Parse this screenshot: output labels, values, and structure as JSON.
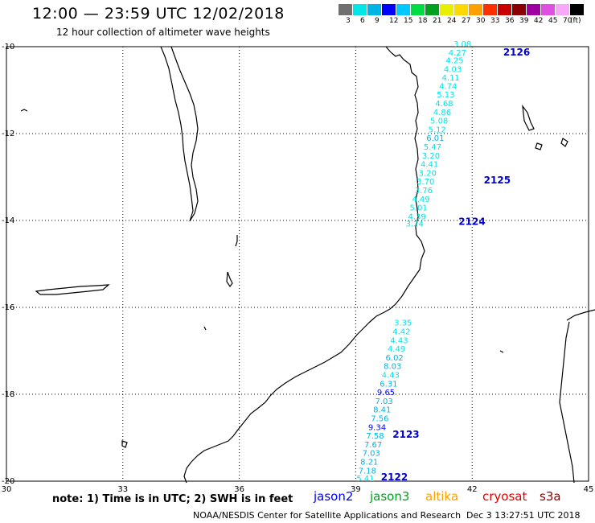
{
  "header": {
    "title": "12:00 — 23:59 UTC 12/02/2018",
    "subtitle": "12 hour collection of altimeter wave heights"
  },
  "color_scale": {
    "colors": [
      "#707070",
      "#00e5e5",
      "#00b4e6",
      "#0000ff",
      "#00c8ff",
      "#00dd44",
      "#00a020",
      "#e8f000",
      "#ffd800",
      "#ffa000",
      "#ff3000",
      "#c80000",
      "#8a0000",
      "#a000a0",
      "#e050e0",
      "#f8a8f8",
      "#000000"
    ],
    "labels": [
      "3",
      "6",
      "9",
      "12",
      "15",
      "18",
      "21",
      "24",
      "27",
      "30",
      "33",
      "36",
      "39",
      "42",
      "45",
      "70",
      "(ft)"
    ]
  },
  "axes": {
    "lon_labels": [
      "30",
      "33",
      "36",
      "39",
      "42",
      "45"
    ],
    "lat_labels": [
      "-10",
      "-12",
      "-14",
      "-16",
      "-18",
      "-20"
    ]
  },
  "passes": [
    {
      "label": "2126",
      "lon": 42.8,
      "lat": -10.2
    },
    {
      "label": "2125",
      "lon": 42.3,
      "lat": -13.15
    },
    {
      "label": "2124",
      "lon": 41.65,
      "lat": -14.1
    },
    {
      "label": "2123",
      "lon": 39.95,
      "lat": -19.0
    },
    {
      "label": "2122",
      "lon": 39.65,
      "lat": -19.98
    }
  ],
  "track_north": [
    {
      "v": "3.08",
      "lon": 41.75,
      "lat": -10.0,
      "c": "#00e5e5"
    },
    {
      "v": "4.27",
      "lon": 41.62,
      "lat": -10.2,
      "c": "#00e5e5"
    },
    {
      "v": "4.25",
      "lon": 41.55,
      "lat": -10.38,
      "c": "#00e5e5"
    },
    {
      "v": "4.03",
      "lon": 41.5,
      "lat": -10.58,
      "c": "#00e5e5"
    },
    {
      "v": "4.11",
      "lon": 41.45,
      "lat": -10.78,
      "c": "#00e5e5"
    },
    {
      "v": "4.74",
      "lon": 41.38,
      "lat": -10.97,
      "c": "#00e5e5"
    },
    {
      "v": "5.13",
      "lon": 41.32,
      "lat": -11.17,
      "c": "#00e5e5"
    },
    {
      "v": "4.68",
      "lon": 41.28,
      "lat": -11.37,
      "c": "#00e5e5"
    },
    {
      "v": "4.86",
      "lon": 41.23,
      "lat": -11.57,
      "c": "#00e5e5"
    },
    {
      "v": "5.08",
      "lon": 41.15,
      "lat": -11.77,
      "c": "#00e5e5"
    },
    {
      "v": "5.12",
      "lon": 41.1,
      "lat": -11.97,
      "c": "#00e5e5"
    },
    {
      "v": "6.01",
      "lon": 41.05,
      "lat": -12.17,
      "c": "#00b4e6"
    },
    {
      "v": "5.47",
      "lon": 40.98,
      "lat": -12.37,
      "c": "#00e5e5"
    },
    {
      "v": "3.20",
      "lon": 40.94,
      "lat": -12.57,
      "c": "#00e5e5"
    },
    {
      "v": "4.41",
      "lon": 40.9,
      "lat": -12.77,
      "c": "#00e5e5"
    },
    {
      "v": "3.20",
      "lon": 40.85,
      "lat": -12.97,
      "c": "#00e5e5"
    },
    {
      "v": "3.70",
      "lon": 40.8,
      "lat": -13.17,
      "c": "#00e5e5"
    },
    {
      "v": "3.76",
      "lon": 40.75,
      "lat": -13.37,
      "c": "#00e5e5"
    },
    {
      "v": "4.49",
      "lon": 40.68,
      "lat": -13.57,
      "c": "#00e5e5"
    },
    {
      "v": "5.01",
      "lon": 40.62,
      "lat": -13.77,
      "c": "#00e5e5"
    },
    {
      "v": "4.39",
      "lon": 40.58,
      "lat": -13.97,
      "c": "#00e5e5"
    },
    {
      "v": "3.24",
      "lon": 40.52,
      "lat": -14.14,
      "c": "#00e5e5"
    }
  ],
  "track_south": [
    {
      "v": "3.35",
      "lon": 40.22,
      "lat": -16.42,
      "c": "#00e5e5"
    },
    {
      "v": "4.42",
      "lon": 40.18,
      "lat": -16.62,
      "c": "#00e5e5"
    },
    {
      "v": "4.43",
      "lon": 40.12,
      "lat": -16.82,
      "c": "#00e5e5"
    },
    {
      "v": "4.49",
      "lon": 40.05,
      "lat": -17.02,
      "c": "#00e5e5"
    },
    {
      "v": "6.02",
      "lon": 40.0,
      "lat": -17.22,
      "c": "#00b4e6"
    },
    {
      "v": "8.03",
      "lon": 39.95,
      "lat": -17.42,
      "c": "#00b4e6"
    },
    {
      "v": "4.43",
      "lon": 39.9,
      "lat": -17.62,
      "c": "#00e5e5"
    },
    {
      "v": "6.31",
      "lon": 39.85,
      "lat": -17.82,
      "c": "#00b4e6"
    },
    {
      "v": "9.65",
      "lon": 39.78,
      "lat": -18.02,
      "c": "#0000ff"
    },
    {
      "v": "7.03",
      "lon": 39.73,
      "lat": -18.22,
      "c": "#00b4e6"
    },
    {
      "v": "8.41",
      "lon": 39.68,
      "lat": -18.42,
      "c": "#00b4e6"
    },
    {
      "v": "7.56",
      "lon": 39.62,
      "lat": -18.62,
      "c": "#00b4e6"
    },
    {
      "v": "9.34",
      "lon": 39.55,
      "lat": -18.82,
      "c": "#0000ff"
    },
    {
      "v": "7.58",
      "lon": 39.5,
      "lat": -19.02,
      "c": "#00b4e6"
    },
    {
      "v": "7.67",
      "lon": 39.45,
      "lat": -19.22,
      "c": "#00b4e6"
    },
    {
      "v": "7.03",
      "lon": 39.4,
      "lat": -19.42,
      "c": "#00b4e6"
    },
    {
      "v": "8.21",
      "lon": 39.35,
      "lat": -19.62,
      "c": "#00b4e6"
    },
    {
      "v": "7.18",
      "lon": 39.3,
      "lat": -19.82,
      "c": "#00b4e6"
    },
    {
      "v": "5.41",
      "lon": 39.25,
      "lat": -20.0,
      "c": "#00e5e5"
    }
  ],
  "note": "note: 1) Time is in UTC; 2) SWH is in feet",
  "legend": [
    {
      "name": "jason2",
      "color": "#0000ff"
    },
    {
      "name": "jason3",
      "color": "#00a020"
    },
    {
      "name": "altika",
      "color": "#ffa000"
    },
    {
      "name": "cryosat",
      "color": "#e00000"
    },
    {
      "name": "s3a",
      "color": "#8a0000"
    }
  ],
  "footer": {
    "center": "NOAA/NESDIS Center for Satellite Applications and Research",
    "stamp": "Dec  3 13:27:51 UTC 2018"
  }
}
